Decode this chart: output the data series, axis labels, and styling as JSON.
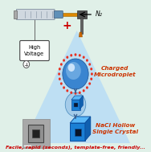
{
  "bg_color": "#e0f0e8",
  "title_text": "Facile, rapid (seconds), template-free, friendly...",
  "title_color": "#cc0000",
  "charged_label": "Charged\nMicrodroplet",
  "nacl_label": "NaCl Hollow\nSingle Crystal",
  "n2_label": "N₂",
  "high_voltage_label": "High\nVoltage",
  "triangle_color": "#b8ddf5",
  "triangle_alpha": 0.85,
  "droplet_blue": "#3a85d0",
  "droplet_light": "#90c4ee",
  "droplet_shine": "#ddeeff",
  "dot_color": "#e83020",
  "cube_color": "#1a7fd4",
  "cube_dark": "#0a50a0",
  "cube_top": "#5ab8f8",
  "cube_right": "#1060b0",
  "arrow_color": "#3a6090",
  "wire_color": "#666666",
  "plus_color": "#cc0000",
  "needle_orange": "#dd8800",
  "syringe_body": "#b8d8f0",
  "syringe_tip": "#7090a8",
  "n2_device_color": "#606060",
  "sem_bg": "#b8b8b8",
  "sem_mid": "#888888",
  "sem_dark": "#202020",
  "sphere_mid_color": "#3090d0",
  "sphere_bg_color": "#a0c8e8"
}
